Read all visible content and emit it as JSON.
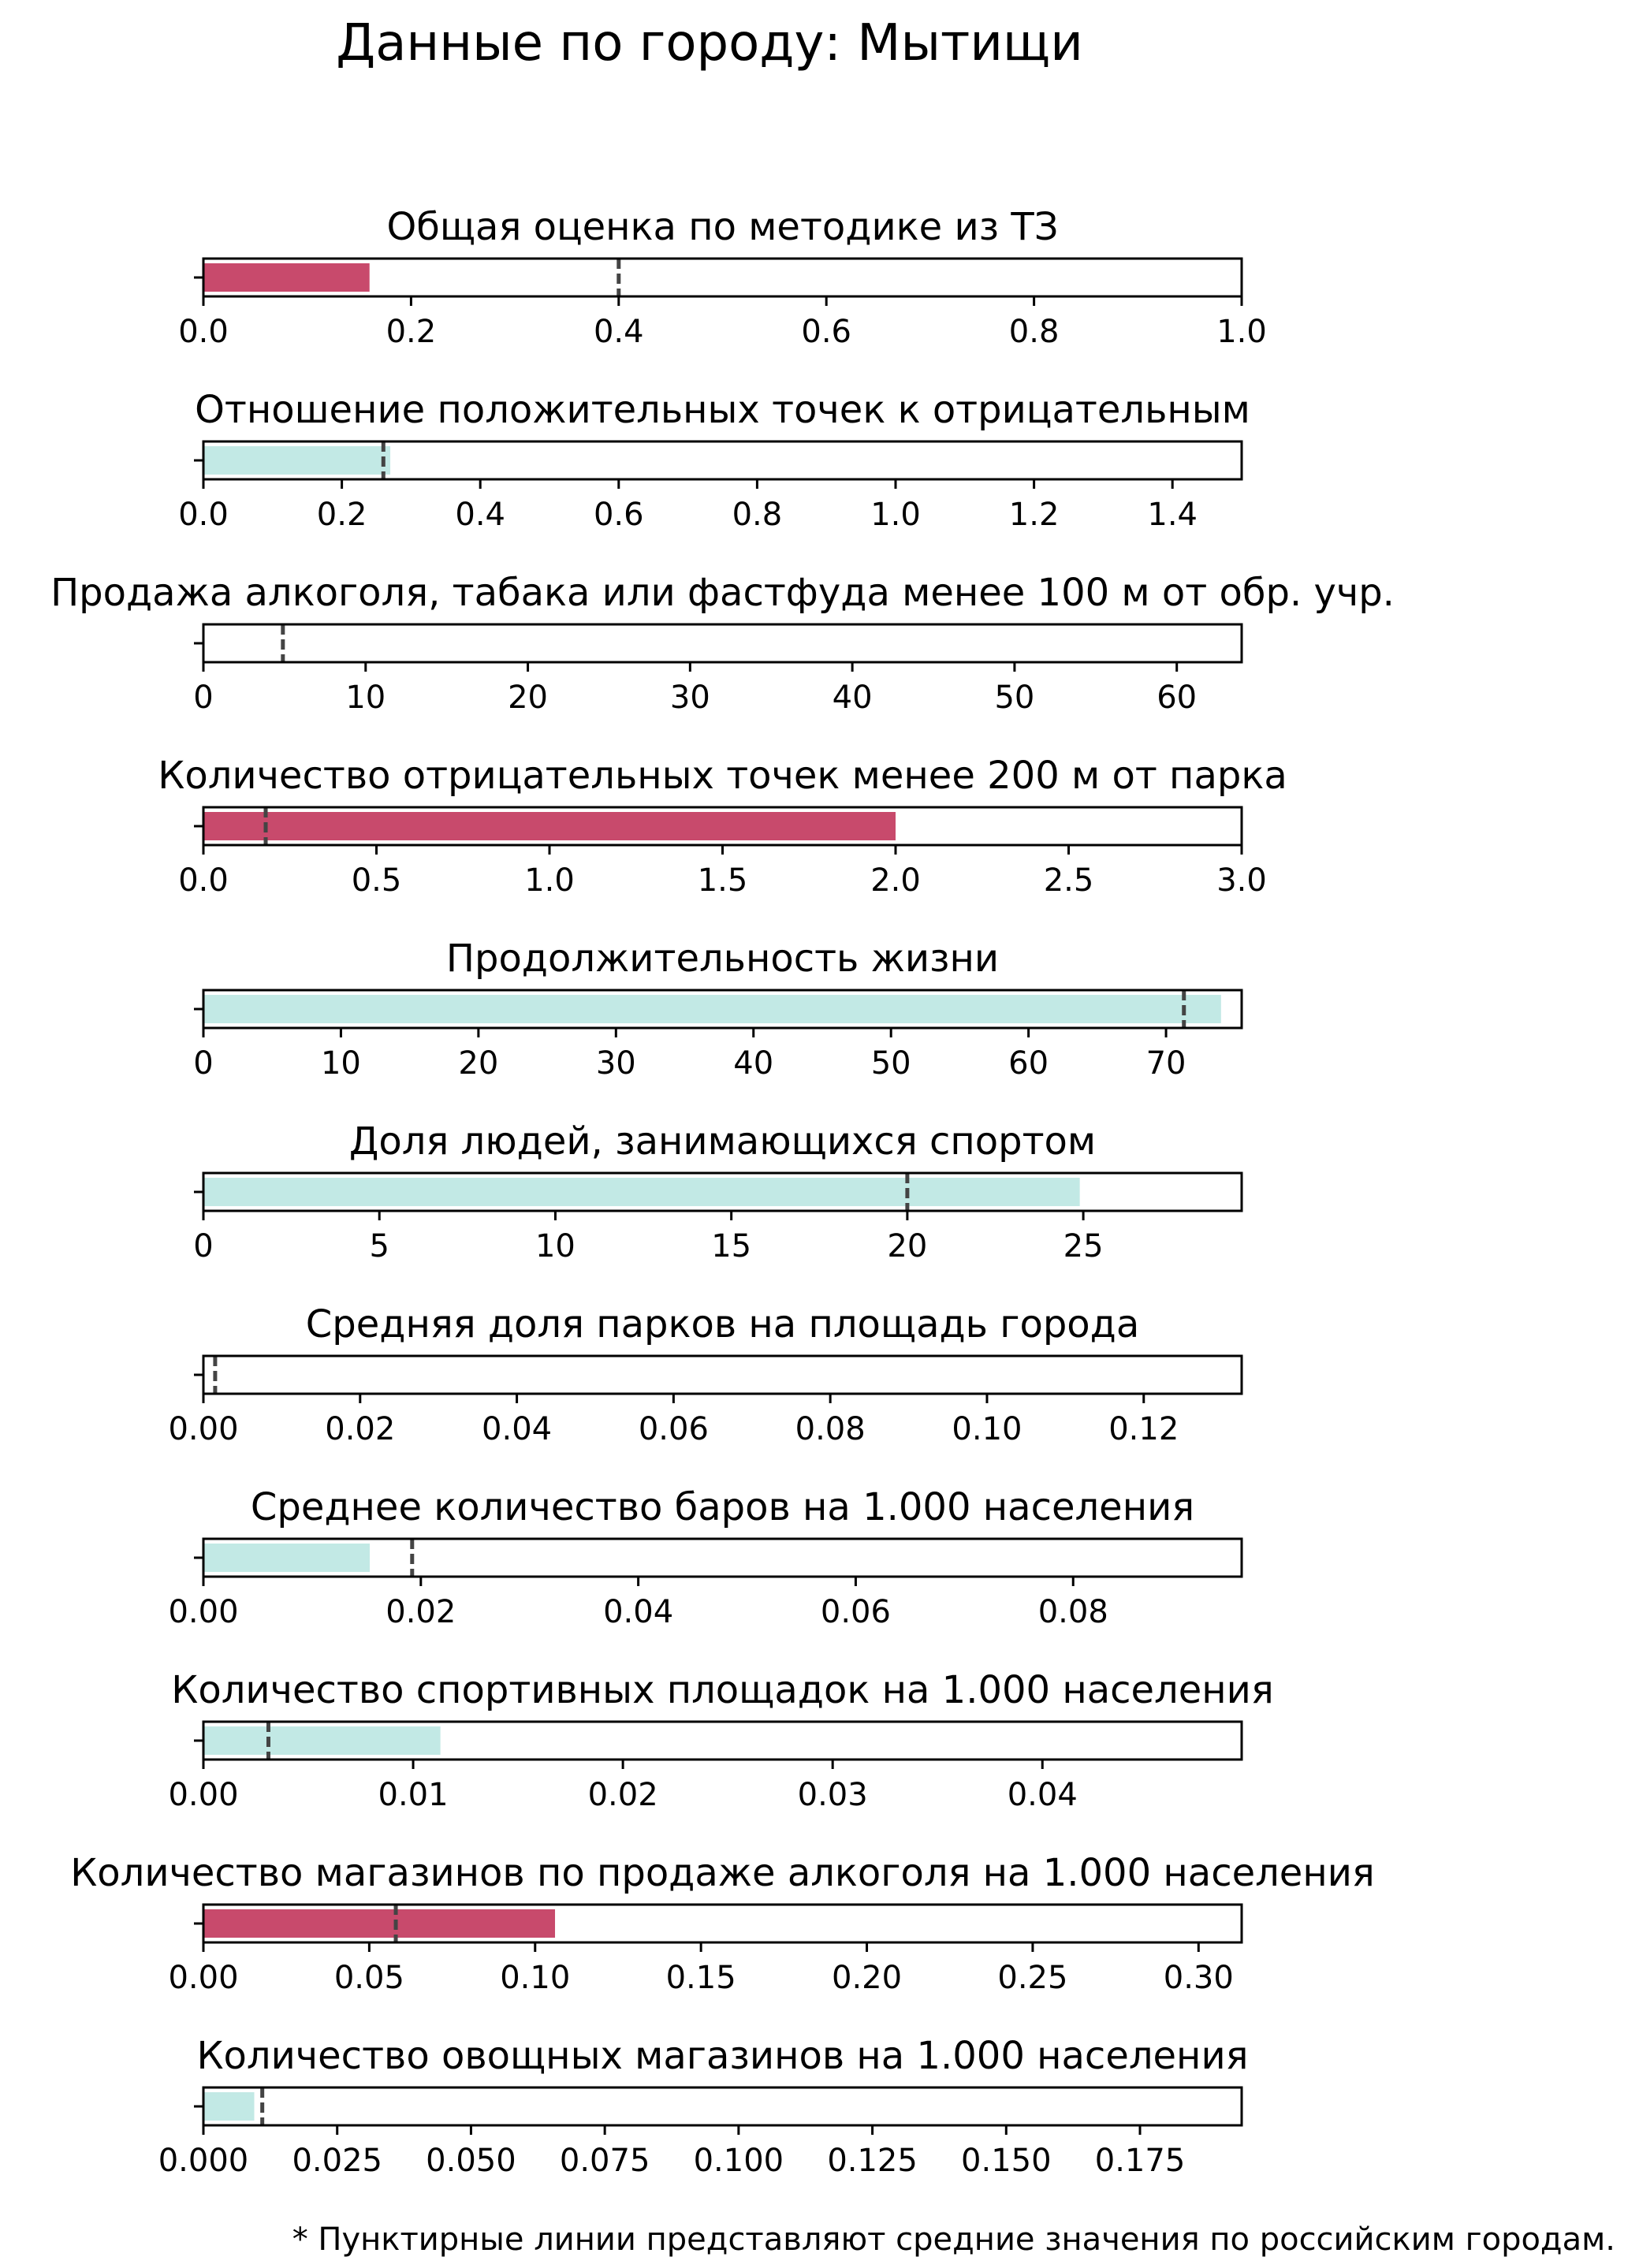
{
  "title": "Данные по городу: Мытищи",
  "footnote": "* Пунктирные линии представляют средние значения по российским городам.",
  "colors": {
    "bad": "#c84a6c",
    "good": "#c2e9e5",
    "mean_line": "#444444",
    "frame": "#000000"
  },
  "chart_data": [
    {
      "type": "bar",
      "title": "Общая оценка по методике из ТЗ",
      "value": 0.16,
      "mean": 0.4,
      "color": "bad",
      "xlim": [
        0,
        1.0
      ],
      "ticks": [
        "0.0",
        "0.2",
        "0.4",
        "0.6",
        "0.8",
        "1.0"
      ]
    },
    {
      "type": "bar",
      "title": "Отношение положительных точек к отрицательным",
      "value": 0.27,
      "mean": 0.26,
      "color": "good",
      "xlim": [
        0,
        1.5
      ],
      "ticks": [
        "0.0",
        "0.2",
        "0.4",
        "0.6",
        "0.8",
        "1.0",
        "1.2",
        "1.4"
      ]
    },
    {
      "type": "bar",
      "title": "Продажа алкоголя, табака или фастфуда менее 100 м от обр. учр.",
      "value": 0,
      "mean": 4.9,
      "color": "bad",
      "xlim": [
        0,
        64
      ],
      "ticks": [
        "0",
        "10",
        "20",
        "30",
        "40",
        "50",
        "60"
      ]
    },
    {
      "type": "bar",
      "title": "Количество отрицательных точек менее 200 м от парка",
      "value": 2.0,
      "mean": 0.18,
      "color": "bad",
      "xlim": [
        0,
        3.0
      ],
      "ticks": [
        "0.0",
        "0.5",
        "1.0",
        "1.5",
        "2.0",
        "2.5",
        "3.0"
      ]
    },
    {
      "type": "bar",
      "title": "Продолжительность жизни",
      "value": 74.0,
      "mean": 71.3,
      "color": "good",
      "xlim": [
        0,
        75.5
      ],
      "ticks": [
        "0",
        "10",
        "20",
        "30",
        "40",
        "50",
        "60",
        "70"
      ]
    },
    {
      "type": "bar",
      "title": "Доля людей, занимающихся спортом",
      "value": 24.9,
      "mean": 20.0,
      "color": "good",
      "xlim": [
        0,
        29.5
      ],
      "ticks": [
        "0",
        "5",
        "10",
        "15",
        "20",
        "25"
      ]
    },
    {
      "type": "bar",
      "title": "Средняя доля парков на площадь города",
      "value": 0,
      "mean": 0.0015,
      "color": "good",
      "xlim": [
        0,
        0.1325
      ],
      "ticks": [
        "0.00",
        "0.02",
        "0.04",
        "0.06",
        "0.08",
        "0.10",
        "0.12"
      ]
    },
    {
      "type": "bar",
      "title": "Среднее количество баров на 1.000 населения",
      "value": 0.0153,
      "mean": 0.0192,
      "color": "good",
      "xlim": [
        0,
        0.0955
      ],
      "ticks": [
        "0.00",
        "0.02",
        "0.04",
        "0.06",
        "0.08"
      ]
    },
    {
      "type": "bar",
      "title": "Количество спортивных площадок на 1.000 населения",
      "value": 0.0113,
      "mean": 0.0031,
      "color": "good",
      "xlim": [
        0,
        0.0495
      ],
      "ticks": [
        "0.00",
        "0.01",
        "0.02",
        "0.03",
        "0.04"
      ]
    },
    {
      "type": "bar",
      "title": "Количество магазинов по продаже алкоголя на 1.000 населения",
      "value": 0.106,
      "mean": 0.058,
      "color": "bad",
      "xlim": [
        0,
        0.313
      ],
      "ticks": [
        "0.00",
        "0.05",
        "0.10",
        "0.15",
        "0.20",
        "0.25",
        "0.30"
      ]
    },
    {
      "type": "bar",
      "title": "Количество овощных магазинов на 1.000 населения",
      "value": 0.0095,
      "mean": 0.011,
      "color": "good",
      "xlim": [
        0,
        0.194
      ],
      "ticks": [
        "0.000",
        "0.025",
        "0.050",
        "0.075",
        "0.100",
        "0.125",
        "0.150",
        "0.175"
      ]
    }
  ]
}
